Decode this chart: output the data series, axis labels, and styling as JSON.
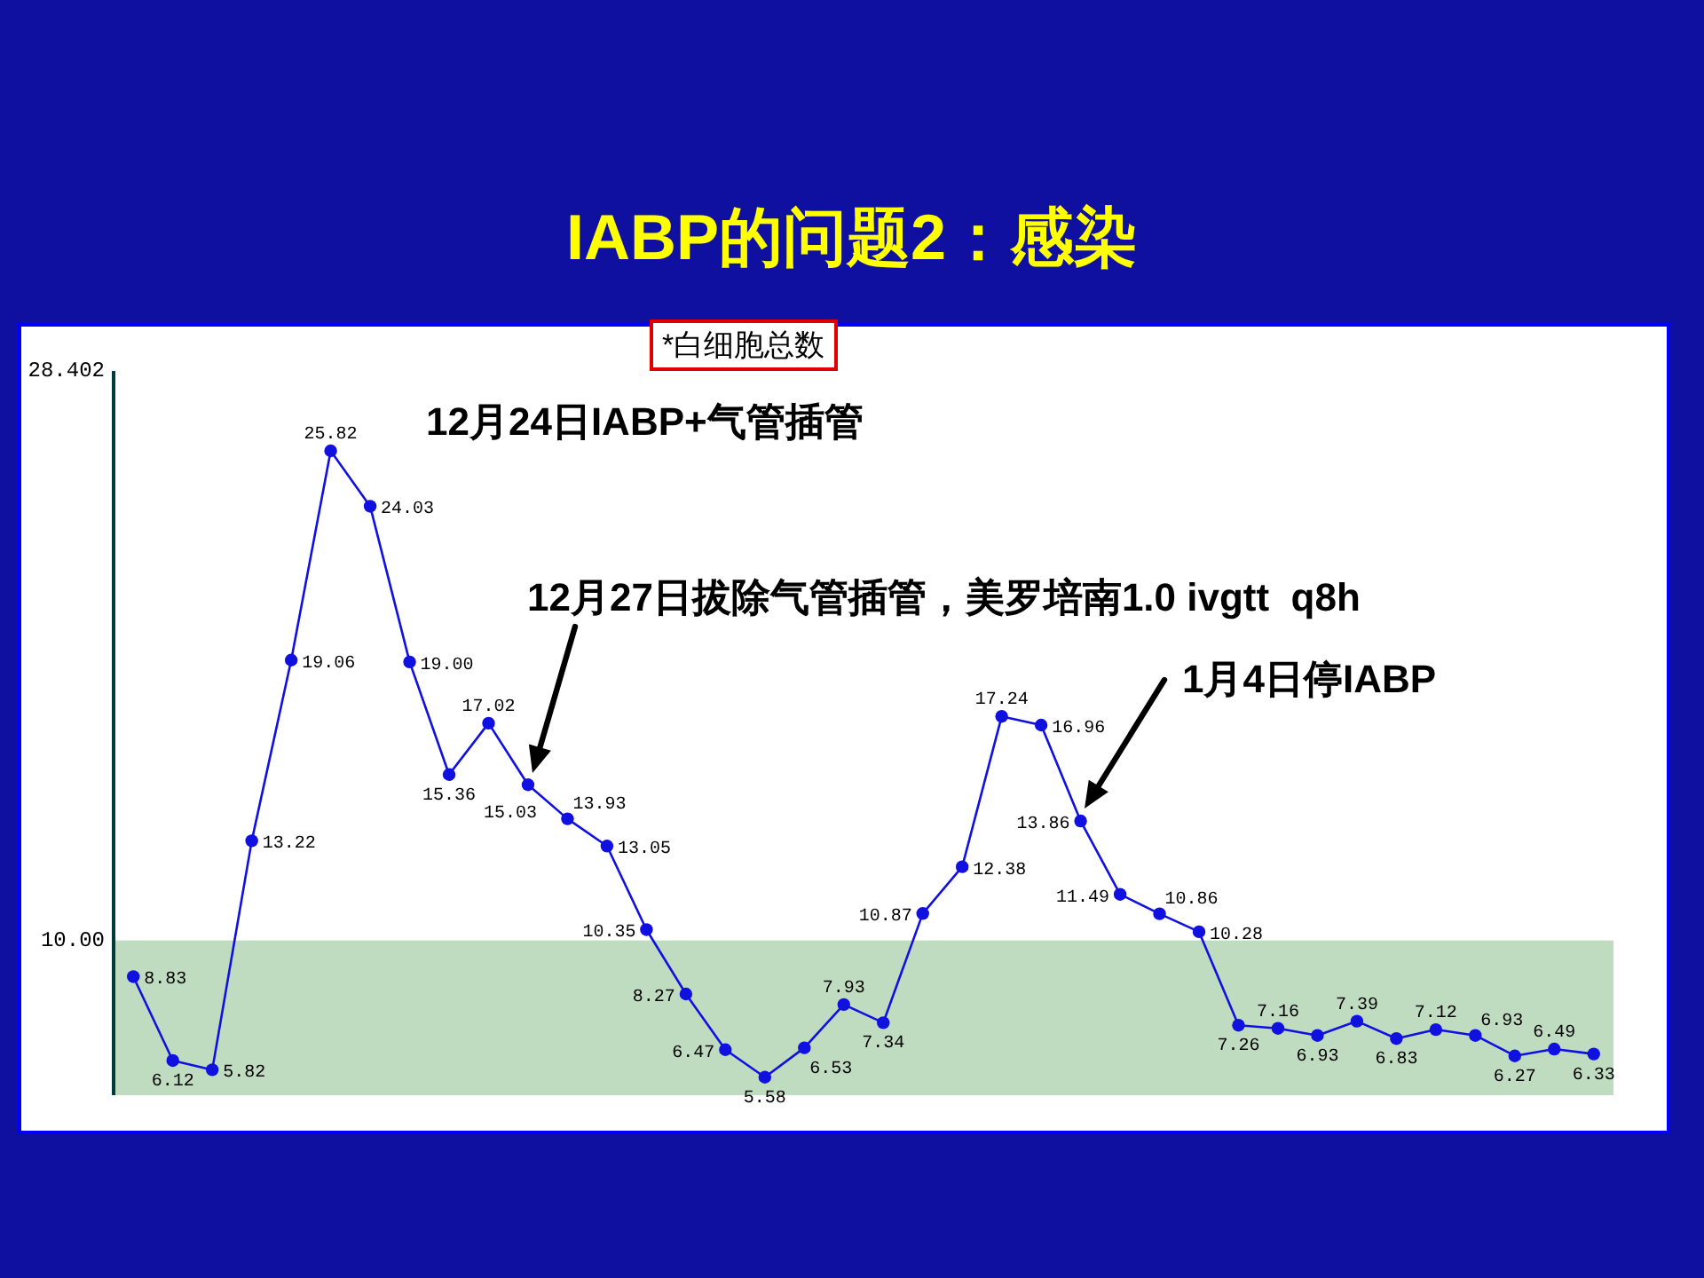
{
  "chart_data": {
    "type": "line",
    "title": "IABP的问题2：感染",
    "subtitle": "*白细胞总数",
    "categories": [
      null,
      null,
      null,
      null,
      null,
      null,
      null,
      null,
      null,
      null,
      null,
      null,
      null,
      null,
      null,
      null,
      null,
      null,
      null,
      null,
      null,
      null,
      null,
      null,
      null,
      null,
      null,
      null,
      null,
      null,
      null,
      null,
      null,
      null,
      null,
      null,
      null,
      null
    ],
    "series": [
      {
        "color": "#1010e0",
        "values": [
          8.83,
          6.12,
          5.82,
          13.22,
          19.06,
          25.82,
          24.03,
          19.0,
          15.36,
          17.02,
          15.03,
          13.93,
          13.05,
          10.35,
          8.27,
          6.47,
          5.58,
          6.53,
          7.93,
          7.34,
          10.87,
          12.38,
          17.24,
          16.96,
          13.86,
          11.49,
          10.86,
          10.28,
          7.26,
          7.16,
          6.93,
          7.39,
          6.83,
          7.12,
          6.93,
          6.27,
          6.49,
          6.33
        ],
        "value_labels": [
          "8.83",
          "6.12",
          "5.82",
          "13.22",
          "19.06",
          "25.82",
          "24.03",
          "19.00",
          "15.36",
          "17.02",
          "15.03",
          "13.93",
          "13.05",
          "10.35",
          "8.27",
          "6.47",
          "5.58",
          "6.53",
          "7.93",
          "7.34",
          "10.87",
          "12.38",
          "17.24",
          "16.96",
          "13.86",
          "11.49",
          "10.86",
          "10.28",
          "7.26",
          "7.16",
          "6.93",
          "7.39",
          "6.83",
          "7.12",
          "6.93",
          "6.27",
          "6.49",
          "6.33"
        ]
      }
    ],
    "ylim": [
      5,
      28.402
    ],
    "yticks": [
      {
        "value": 10,
        "label": "10.00"
      },
      28.402
    ],
    "tick_labels": "y",
    "marker": "circle",
    "line_style": "solid",
    "bands": [
      {
        "axis": "y",
        "from": 5,
        "to": 10,
        "color": "#c0dcc0"
      }
    ],
    "annotations": [
      "12月24日IABP+气管插管",
      "12月27日拔除气管插管，美罗培南1.0 ivgtt  q8h",
      "1月4日停IABP"
    ]
  }
}
